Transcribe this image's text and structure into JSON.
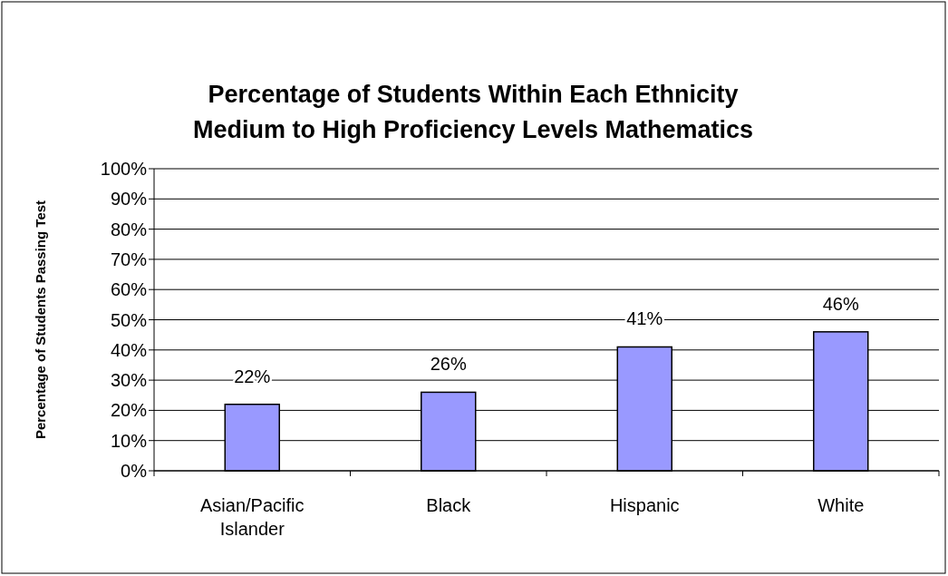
{
  "chart_data": {
    "type": "bar",
    "title": "Percentage of Students Within Each Ethnicity\nMedium to High Proficiency Levels Mathematics",
    "ylabel": "Percentage of Students Passing Test",
    "categories": [
      "Asian/Pacific Islander",
      "Black",
      "Hispanic",
      "White"
    ],
    "values": [
      22,
      26,
      41,
      46
    ],
    "color": "#9999ff",
    "value_labels": [
      "22%",
      "26%",
      "41%",
      "46%"
    ],
    "ylim": [
      0,
      100
    ],
    "yticks": [
      {
        "value": 0,
        "label": "0%"
      },
      {
        "value": 10,
        "label": "10%"
      },
      {
        "value": 20,
        "label": "20%"
      },
      {
        "value": 30,
        "label": "30%"
      },
      {
        "value": 40,
        "label": "40%"
      },
      {
        "value": 50,
        "label": "50%"
      },
      {
        "value": 60,
        "label": "60%"
      },
      {
        "value": 70,
        "label": "70%"
      },
      {
        "value": 80,
        "label": "80%"
      },
      {
        "value": 90,
        "label": "90%"
      },
      {
        "value": 100,
        "label": "100%"
      }
    ],
    "grid": "y"
  }
}
